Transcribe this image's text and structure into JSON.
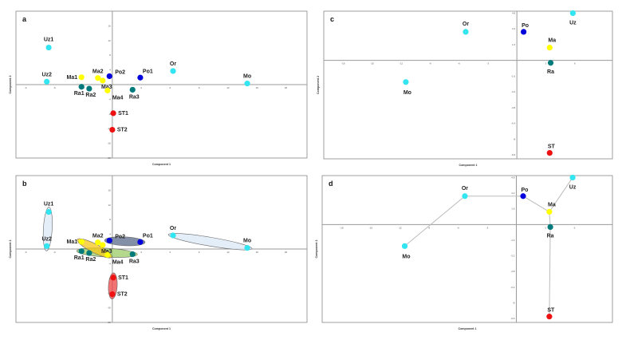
{
  "chart_data": [
    {
      "panel": "a",
      "type": "scatter",
      "xlabel": "Component 1",
      "ylabel": "Component 2",
      "xlim": [
        -10,
        20.2
      ],
      "ylim": [
        -20,
        20
      ],
      "xticks": [
        -9,
        -6,
        -3,
        3,
        6,
        9,
        12,
        15,
        18
      ],
      "yticks": [
        16,
        12,
        8,
        4,
        -4,
        -8,
        -12,
        -16,
        -20
      ],
      "points": [
        {
          "label": "Uz1",
          "x": -6.6,
          "y": 10.1,
          "color": "#33e5f0"
        },
        {
          "label": "Uz2",
          "x": -6.8,
          "y": 0.8,
          "color": "#33e5f0"
        },
        {
          "label": "Ma1",
          "x": -3.2,
          "y": 2.0,
          "color": "#ffff00"
        },
        {
          "label": "Ma2",
          "x": -1.5,
          "y": 1.8,
          "color": "#ffff00"
        },
        {
          "label": "Ma3",
          "x": -1.0,
          "y": 1.1,
          "color": "#ffff00"
        },
        {
          "label": "Ma4",
          "x": -0.5,
          "y": -1.6,
          "color": "#ffff00"
        },
        {
          "label": "Po2",
          "x": -0.3,
          "y": 2.3,
          "color": "#0000dd"
        },
        {
          "label": "Po1",
          "x": 2.9,
          "y": 1.9,
          "color": "#0000dd"
        },
        {
          "label": "Or",
          "x": 6.3,
          "y": 3.7,
          "color": "#33e5f0"
        },
        {
          "label": "Mo",
          "x": 14.0,
          "y": 0.3,
          "color": "#33e5f0"
        },
        {
          "label": "Ra1",
          "x": -3.2,
          "y": -0.6,
          "color": "#007a7a"
        },
        {
          "label": "Ra2",
          "x": -2.4,
          "y": -1.1,
          "color": "#007a7a"
        },
        {
          "label": "Ra3",
          "x": 2.1,
          "y": -1.4,
          "color": "#007a7a"
        },
        {
          "label": "ST1",
          "x": 0.1,
          "y": -7.8,
          "color": "#ee1111"
        },
        {
          "label": "ST2",
          "x": 0.0,
          "y": -12.3,
          "color": "#ee1111"
        }
      ]
    },
    {
      "panel": "b",
      "type": "scatter",
      "xlabel": "Component 1",
      "ylabel": "Component 2",
      "xlim": [
        -10,
        20.2
      ],
      "ylim": [
        -20,
        20
      ],
      "xticks": [
        -9,
        -6,
        -3,
        3,
        6,
        9,
        12,
        15,
        18
      ],
      "yticks": [
        16,
        12,
        8,
        4,
        -4,
        -8,
        -12,
        -16,
        -20
      ],
      "points": [
        {
          "label": "Uz1",
          "x": -6.6,
          "y": 10.1,
          "color": "#33e5f0"
        },
        {
          "label": "Uz2",
          "x": -6.8,
          "y": 0.8,
          "color": "#33e5f0"
        },
        {
          "label": "Ma1",
          "x": -3.2,
          "y": 2.0,
          "color": "#ffff00"
        },
        {
          "label": "Ma2",
          "x": -1.5,
          "y": 1.8,
          "color": "#ffff00"
        },
        {
          "label": "Ma3",
          "x": -1.0,
          "y": 1.1,
          "color": "#ffff00"
        },
        {
          "label": "Ma4",
          "x": -0.5,
          "y": -1.6,
          "color": "#ffff00"
        },
        {
          "label": "Po2",
          "x": -0.3,
          "y": 2.3,
          "color": "#0000dd"
        },
        {
          "label": "Po1",
          "x": 2.9,
          "y": 1.9,
          "color": "#0000dd"
        },
        {
          "label": "Or",
          "x": 6.3,
          "y": 3.7,
          "color": "#33e5f0"
        },
        {
          "label": "Mo",
          "x": 14.0,
          "y": 0.3,
          "color": "#33e5f0"
        },
        {
          "label": "Ra1",
          "x": -3.2,
          "y": -0.6,
          "color": "#007a7a"
        },
        {
          "label": "Ra2",
          "x": -2.4,
          "y": -1.1,
          "color": "#007a7a"
        },
        {
          "label": "Ra3",
          "x": 2.1,
          "y": -1.4,
          "color": "#007a7a"
        },
        {
          "label": "ST1",
          "x": 0.1,
          "y": -7.8,
          "color": "#ee1111"
        },
        {
          "label": "ST2",
          "x": 0.0,
          "y": -12.3,
          "color": "#ee1111"
        }
      ],
      "groups": [
        {
          "members": [
            "Uz1",
            "Uz2"
          ],
          "fill": "#dbe8f5"
        },
        {
          "members": [
            "Or",
            "Mo"
          ],
          "fill": "#dbe8f5"
        },
        {
          "members": [
            "Po2",
            "Po1"
          ],
          "fill": "#5a6a8a"
        },
        {
          "members": [
            "Ra1",
            "Ra3"
          ],
          "fill": "#9ccc65"
        },
        {
          "members": [
            "Ma1",
            "Ma4"
          ],
          "fill": "#f5c518"
        },
        {
          "members": [
            "ST1",
            "ST2"
          ],
          "fill": "#ee4444"
        }
      ]
    },
    {
      "panel": "c",
      "type": "scatter",
      "xlabel": "Component 1",
      "ylabel": "Component 2",
      "xlim": [
        -20,
        9.9
      ],
      "ylim": [
        -10,
        5
      ],
      "xticks": [
        -18,
        -15,
        -12,
        -9,
        -6,
        -3,
        3,
        6
      ],
      "yticks": [
        4.8,
        3.2,
        1.6,
        -1.6,
        -3.2,
        -4.8,
        -6.4,
        -8.0,
        -9.6
      ],
      "points": [
        {
          "label": "Or",
          "x": -5.3,
          "y": 2.9,
          "color": "#33e5f0"
        },
        {
          "label": "Po",
          "x": 0.7,
          "y": 2.9,
          "color": "#0000dd"
        },
        {
          "label": "Uz",
          "x": 5.8,
          "y": 4.8,
          "color": "#33e5f0"
        },
        {
          "label": "Ma",
          "x": 3.4,
          "y": 1.3,
          "color": "#ffff00"
        },
        {
          "label": "Ra",
          "x": 3.5,
          "y": -0.25,
          "color": "#007a7a"
        },
        {
          "label": "Mo",
          "x": -11.5,
          "y": -2.2,
          "color": "#33e5f0"
        },
        {
          "label": "ST",
          "x": 3.4,
          "y": -9.4,
          "color": "#ee1111"
        }
      ]
    },
    {
      "panel": "d",
      "type": "scatter",
      "xlabel": "Component 1",
      "ylabel": "Component 2",
      "xlim": [
        -20,
        9.9
      ],
      "ylim": [
        -10,
        5
      ],
      "xticks": [
        -18,
        -15,
        -12,
        -9,
        -6,
        -3,
        3,
        6
      ],
      "yticks": [
        4.8,
        3.2,
        1.6,
        -1.6,
        -3.2,
        -4.8,
        -6.4,
        -8.0,
        -9.6
      ],
      "points": [
        {
          "label": "Or",
          "x": -5.3,
          "y": 2.9,
          "color": "#33e5f0"
        },
        {
          "label": "Po",
          "x": 0.7,
          "y": 2.9,
          "color": "#0000dd"
        },
        {
          "label": "Uz",
          "x": 5.8,
          "y": 4.8,
          "color": "#33e5f0"
        },
        {
          "label": "Ma",
          "x": 3.4,
          "y": 1.3,
          "color": "#ffff00"
        },
        {
          "label": "Ra",
          "x": 3.5,
          "y": -0.25,
          "color": "#007a7a"
        },
        {
          "label": "Mo",
          "x": -11.5,
          "y": -2.2,
          "color": "#33e5f0"
        },
        {
          "label": "ST",
          "x": 3.4,
          "y": -9.4,
          "color": "#ee1111"
        }
      ],
      "edges": [
        [
          "Mo",
          "Or"
        ],
        [
          "Or",
          "Po"
        ],
        [
          "Po",
          "Ma"
        ],
        [
          "Ma",
          "Uz"
        ],
        [
          "Ma",
          "Ra"
        ],
        [
          "Ra",
          "ST"
        ]
      ]
    }
  ]
}
